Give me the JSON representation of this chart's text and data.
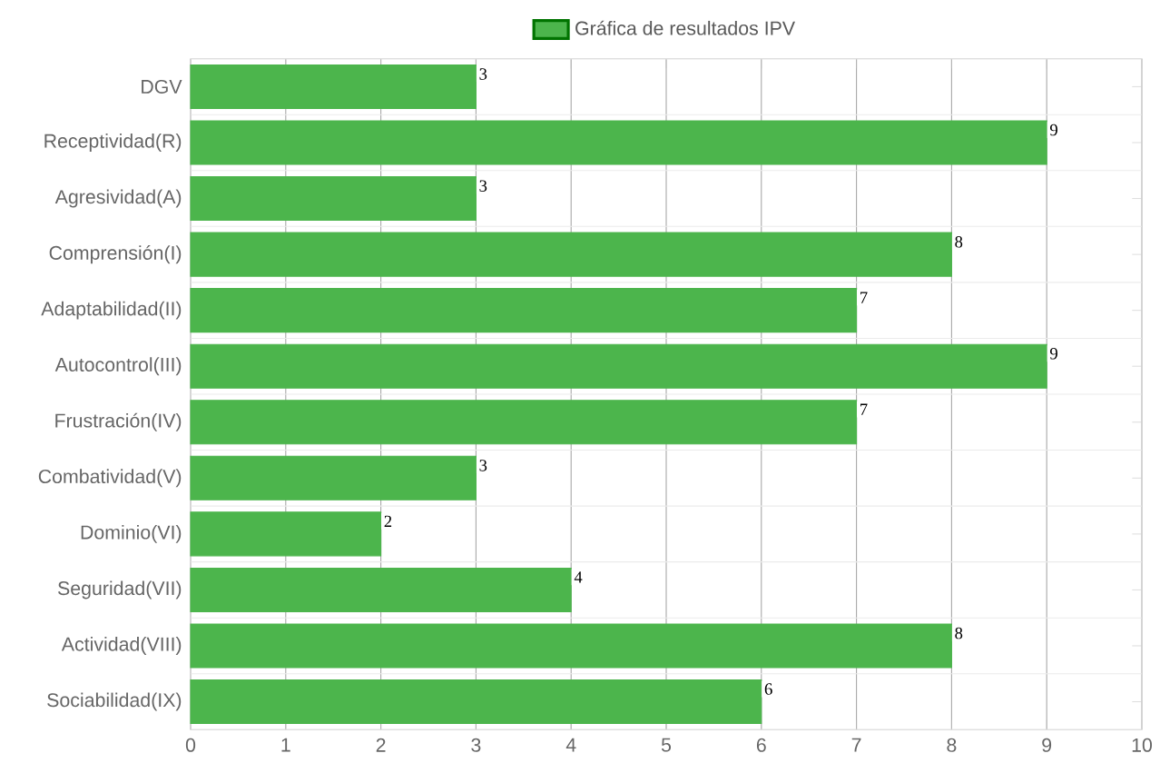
{
  "chart_data": {
    "type": "bar",
    "orientation": "horizontal",
    "categories": [
      "DGV",
      "Receptividad(R)",
      "Agresividad(A)",
      "Comprensión(I)",
      "Adaptabilidad(II)",
      "Autocontrol(III)",
      "Frustración(IV)",
      "Combatividad(V)",
      "Dominio(VI)",
      "Seguridad(VII)",
      "Actividad(VIII)",
      "Sociabilidad(IX)"
    ],
    "series": [
      {
        "name": "Gráfica de resultados IPV",
        "color": "#4cb54c",
        "values": [
          3,
          9,
          3,
          8,
          7,
          9,
          7,
          3,
          2,
          4,
          8,
          6
        ]
      }
    ],
    "xlim": [
      0,
      10
    ],
    "xticks": [
      0,
      1,
      2,
      3,
      4,
      5,
      6,
      7,
      8,
      9,
      10
    ],
    "grid": true,
    "legend": "top",
    "data_labels": true
  }
}
